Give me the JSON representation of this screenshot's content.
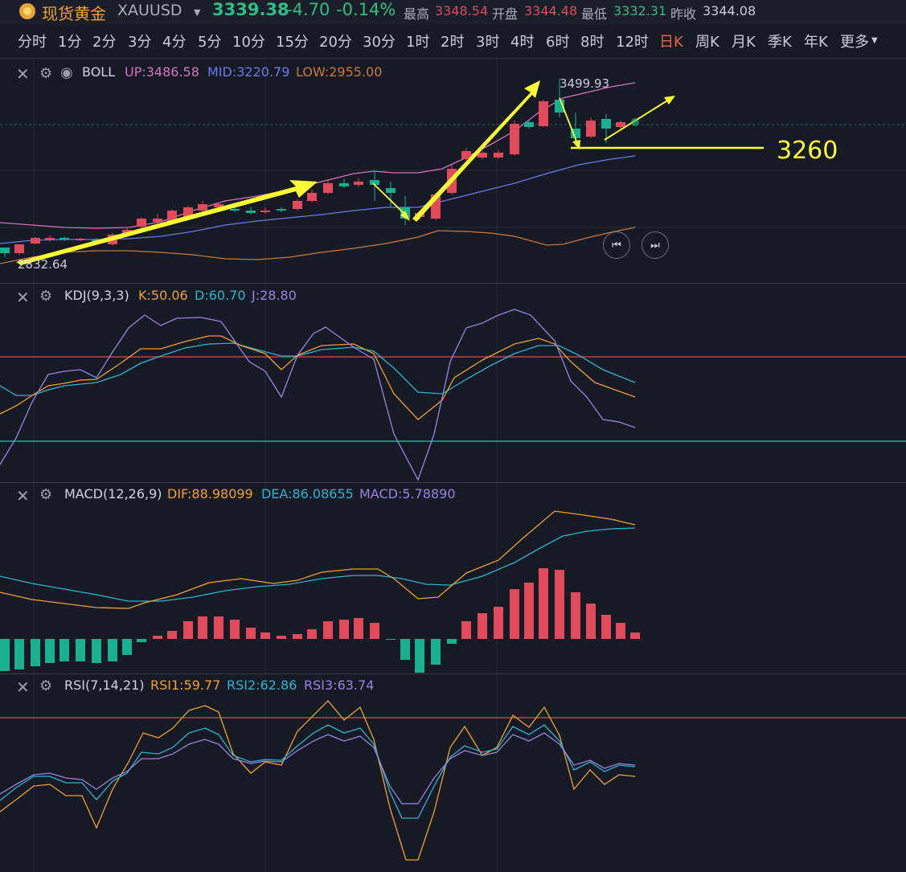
{
  "header": {
    "name": "现货黄金",
    "symbol": "XAUUSD",
    "price": "3339.38",
    "change": "-4.70",
    "change_pct": "-0.14%",
    "high_label": "最高",
    "high": "3348.54",
    "open_label": "开盘",
    "open": "3344.48",
    "low_label": "最低",
    "low": "3332.31",
    "prev_label": "昨收",
    "prev": "3344.08"
  },
  "tabs": [
    "分时",
    "1分",
    "2分",
    "3分",
    "4分",
    "5分",
    "10分",
    "15分",
    "20分",
    "30分",
    "1时",
    "2时",
    "3时",
    "4时",
    "6时",
    "8时",
    "12时",
    "日K",
    "周K",
    "月K",
    "季K",
    "年K",
    "更多"
  ],
  "active_tab": "日K",
  "boll": {
    "name": "BOLL",
    "up": "UP:3486.58",
    "mid": "MID:3220.79",
    "low": "LOW:2955.00",
    "max_label": "3499.93",
    "min_label": "2832.64",
    "annotation": "3260"
  },
  "kdj": {
    "name": "KDJ(9,3,3)",
    "k": "K:50.06",
    "d": "D:60.70",
    "j": "J:28.80"
  },
  "macd": {
    "name": "MACD(12,26,9)",
    "dif": "DIF:88.98099",
    "dea": "DEA:86.08655",
    "macd": "MACD:5.78890"
  },
  "rsi": {
    "name": "RSI(7,14,21)",
    "rsi1": "RSI1:59.77",
    "rsi2": "RSI2:62.86",
    "rsi3": "RSI3:63.74"
  },
  "colors": {
    "up": "#e04a5a",
    "down": "#18b08e",
    "boll_up": "#d870c0",
    "boll_mid": "#6a78e8",
    "boll_low": "#c8783a",
    "k": "#f0a030",
    "d": "#2ab4d0",
    "j": "#9a82e0",
    "annotation": "#ffff33"
  }
}
